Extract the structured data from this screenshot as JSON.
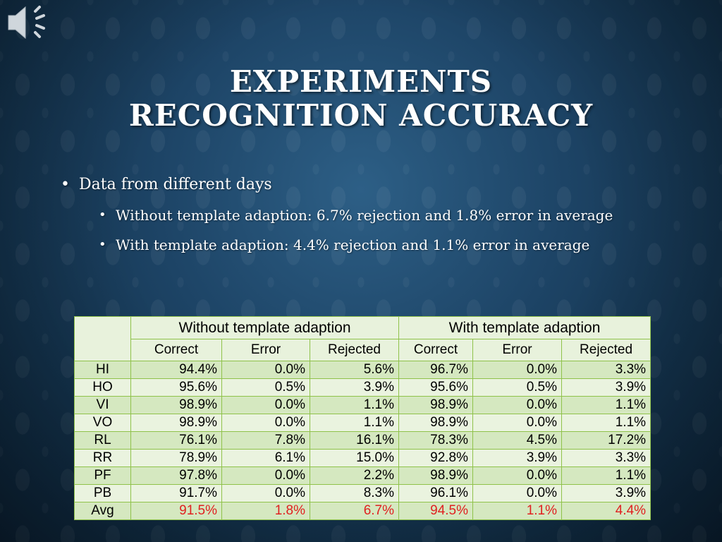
{
  "title": {
    "line1": "EXPERIMENTS",
    "line2": "RECOGNITION ACCURACY"
  },
  "bullets": {
    "main": "Data from different days",
    "sub1": "Without template adaption: 6.7% rejection and 1.8% error in average",
    "sub2": "With template adaption: 4.4% rejection and 1.1% error in average"
  },
  "icons": {
    "speaker": "speaker-icon"
  },
  "table": {
    "group_headers": [
      "Without template adaption",
      "With template adaption"
    ],
    "column_headers": [
      "Correct",
      "Error",
      "Rejected",
      "Correct",
      "Error",
      "Rejected"
    ],
    "rows": [
      {
        "label": "HI",
        "values": [
          "94.4%",
          "0.0%",
          "5.6%",
          "96.7%",
          "0.0%",
          "3.3%"
        ]
      },
      {
        "label": "HO",
        "values": [
          "95.6%",
          "0.5%",
          "3.9%",
          "95.6%",
          "0.5%",
          "3.9%"
        ]
      },
      {
        "label": "VI",
        "values": [
          "98.9%",
          "0.0%",
          "1.1%",
          "98.9%",
          "0.0%",
          "1.1%"
        ]
      },
      {
        "label": "VO",
        "values": [
          "98.9%",
          "0.0%",
          "1.1%",
          "98.9%",
          "0.0%",
          "1.1%"
        ]
      },
      {
        "label": "RL",
        "values": [
          "76.1%",
          "7.8%",
          "16.1%",
          "78.3%",
          "4.5%",
          "17.2%"
        ]
      },
      {
        "label": "RR",
        "values": [
          "78.9%",
          "6.1%",
          "15.0%",
          "92.8%",
          "3.9%",
          "3.3%"
        ]
      },
      {
        "label": "PF",
        "values": [
          "97.8%",
          "0.0%",
          "2.2%",
          "98.9%",
          "0.0%",
          "1.1%"
        ]
      },
      {
        "label": "PB",
        "values": [
          "91.7%",
          "0.0%",
          "8.3%",
          "96.1%",
          "0.0%",
          "3.9%"
        ]
      },
      {
        "label": "Avg",
        "values": [
          "91.5%",
          "1.8%",
          "6.7%",
          "94.5%",
          "1.1%",
          "4.4%"
        ]
      }
    ]
  },
  "colors": {
    "background": "#1d4466",
    "table_border": "#8fc24a",
    "row_dark": "#d5e8c0",
    "row_light": "#eaf3df",
    "avg_text": "#e02020"
  }
}
